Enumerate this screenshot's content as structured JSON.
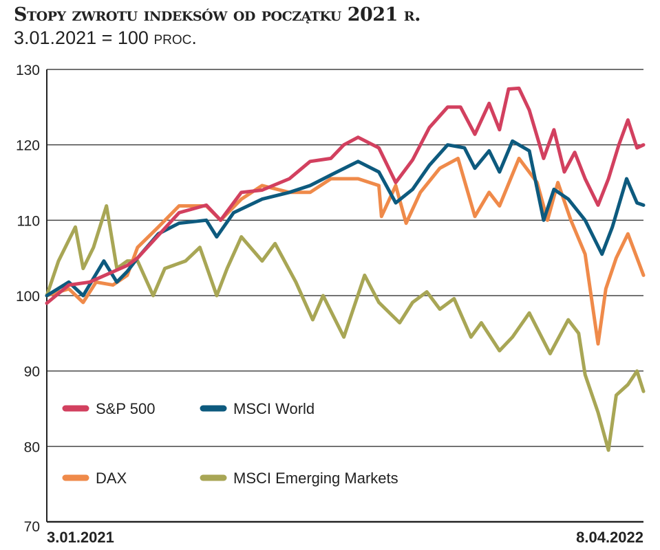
{
  "chart_data": {
    "type": "line",
    "title": "Stopy zwrotu indeksów od początku 2021 r.",
    "subtitle_main": "3.01.2021 = 100",
    "subtitle_unit": "proc.",
    "xlabel": "",
    "ylabel": "",
    "x_unit": "days since 3.01.2021",
    "xlim": [
      0,
      460
    ],
    "ylim": [
      70,
      130
    ],
    "yticks": [
      70,
      80,
      90,
      100,
      110,
      120,
      130
    ],
    "xtick_labels": [
      "3.01.2021",
      "8.04.2022"
    ],
    "grid": true,
    "legend_placement": "bottom-left",
    "series": [
      {
        "name": "S&P 500",
        "color": "#d2405f",
        "points": [
          [
            0,
            99
          ],
          [
            17,
            101.4
          ],
          [
            33,
            101.8
          ],
          [
            62,
            104
          ],
          [
            70,
            105
          ],
          [
            86,
            108
          ],
          [
            102,
            111
          ],
          [
            123,
            112
          ],
          [
            134,
            110
          ],
          [
            150,
            113.7
          ],
          [
            166,
            114
          ],
          [
            187,
            115.5
          ],
          [
            203,
            117.8
          ],
          [
            219,
            118.2
          ],
          [
            229,
            120
          ],
          [
            240,
            121
          ],
          [
            256,
            119.6
          ],
          [
            269,
            115
          ],
          [
            282,
            118
          ],
          [
            295,
            122.3
          ],
          [
            309,
            125
          ],
          [
            319,
            125
          ],
          [
            330,
            121.4
          ],
          [
            341,
            125.5
          ],
          [
            349,
            122
          ],
          [
            356,
            127.4
          ],
          [
            364,
            127.5
          ],
          [
            372,
            124.6
          ],
          [
            383,
            118.2
          ],
          [
            391,
            122
          ],
          [
            399,
            116.4
          ],
          [
            407,
            119
          ],
          [
            415,
            115.5
          ],
          [
            425,
            112
          ],
          [
            433,
            115.5
          ],
          [
            441,
            120
          ],
          [
            448,
            123.3
          ],
          [
            455,
            119.6
          ],
          [
            460,
            120
          ]
        ]
      },
      {
        "name": "MSCI World",
        "color": "#0d5a7e",
        "points": [
          [
            0,
            100
          ],
          [
            17,
            101.8
          ],
          [
            28,
            100
          ],
          [
            44,
            104.6
          ],
          [
            54,
            101.8
          ],
          [
            62,
            103.2
          ],
          [
            70,
            105
          ],
          [
            86,
            108.2
          ],
          [
            102,
            109.6
          ],
          [
            123,
            110
          ],
          [
            131,
            107.8
          ],
          [
            144,
            111
          ],
          [
            166,
            112.8
          ],
          [
            187,
            113.7
          ],
          [
            203,
            114.6
          ],
          [
            219,
            116
          ],
          [
            240,
            117.8
          ],
          [
            256,
            116.4
          ],
          [
            269,
            112.3
          ],
          [
            282,
            114.1
          ],
          [
            295,
            117.3
          ],
          [
            309,
            120
          ],
          [
            322,
            119.6
          ],
          [
            330,
            116.9
          ],
          [
            341,
            119.2
          ],
          [
            349,
            116.4
          ],
          [
            359,
            120.5
          ],
          [
            372,
            119.2
          ],
          [
            383,
            110
          ],
          [
            391,
            114.1
          ],
          [
            402,
            112.8
          ],
          [
            415,
            110
          ],
          [
            428,
            105.5
          ],
          [
            436,
            109.1
          ],
          [
            447,
            115.5
          ],
          [
            455,
            112.3
          ],
          [
            460,
            112
          ]
        ]
      },
      {
        "name": "DAX",
        "color": "#ef8a4a",
        "points": [
          [
            0,
            100
          ],
          [
            17,
            100.9
          ],
          [
            28,
            99.1
          ],
          [
            38,
            101.8
          ],
          [
            51,
            101.4
          ],
          [
            62,
            102.7
          ],
          [
            70,
            106.4
          ],
          [
            86,
            109.1
          ],
          [
            102,
            111.9
          ],
          [
            123,
            111.9
          ],
          [
            134,
            110
          ],
          [
            150,
            112.8
          ],
          [
            166,
            114.6
          ],
          [
            187,
            113.7
          ],
          [
            203,
            113.7
          ],
          [
            219,
            115.5
          ],
          [
            240,
            115.5
          ],
          [
            256,
            114.6
          ],
          [
            258,
            110.5
          ],
          [
            269,
            114.6
          ],
          [
            277,
            109.6
          ],
          [
            288,
            113.7
          ],
          [
            303,
            116.9
          ],
          [
            317,
            118.2
          ],
          [
            330,
            110.5
          ],
          [
            341,
            113.7
          ],
          [
            349,
            111.9
          ],
          [
            364,
            118.2
          ],
          [
            378,
            115
          ],
          [
            386,
            110
          ],
          [
            394,
            115
          ],
          [
            404,
            110
          ],
          [
            415,
            105.5
          ],
          [
            425,
            93.6
          ],
          [
            431,
            100.9
          ],
          [
            439,
            105
          ],
          [
            448,
            108.2
          ],
          [
            455,
            105
          ],
          [
            460,
            102.7
          ]
        ]
      },
      {
        "name": "MSCI Emerging Markets",
        "color": "#a8a655",
        "points": [
          [
            0,
            100
          ],
          [
            9,
            104.6
          ],
          [
            22,
            109.1
          ],
          [
            28,
            103.6
          ],
          [
            36,
            106.4
          ],
          [
            46,
            111.9
          ],
          [
            54,
            103.6
          ],
          [
            62,
            104.6
          ],
          [
            70,
            104.6
          ],
          [
            82,
            100
          ],
          [
            91,
            103.6
          ],
          [
            107,
            104.6
          ],
          [
            118,
            106.4
          ],
          [
            131,
            100
          ],
          [
            139,
            103.6
          ],
          [
            150,
            107.8
          ],
          [
            166,
            104.6
          ],
          [
            176,
            106.9
          ],
          [
            192,
            101.8
          ],
          [
            205,
            96.8
          ],
          [
            213,
            100
          ],
          [
            229,
            94.5
          ],
          [
            245,
            102.7
          ],
          [
            256,
            99.1
          ],
          [
            272,
            96.4
          ],
          [
            282,
            99.1
          ],
          [
            293,
            100.5
          ],
          [
            303,
            98.2
          ],
          [
            314,
            99.6
          ],
          [
            327,
            94.5
          ],
          [
            335,
            96.4
          ],
          [
            349,
            92.7
          ],
          [
            359,
            94.5
          ],
          [
            372,
            97.7
          ],
          [
            388,
            92.3
          ],
          [
            402,
            96.8
          ],
          [
            410,
            95
          ],
          [
            415,
            89.5
          ],
          [
            425,
            84.5
          ],
          [
            433,
            79.5
          ],
          [
            439,
            86.8
          ],
          [
            448,
            88.2
          ],
          [
            455,
            90
          ],
          [
            460,
            87.3
          ]
        ]
      }
    ]
  }
}
